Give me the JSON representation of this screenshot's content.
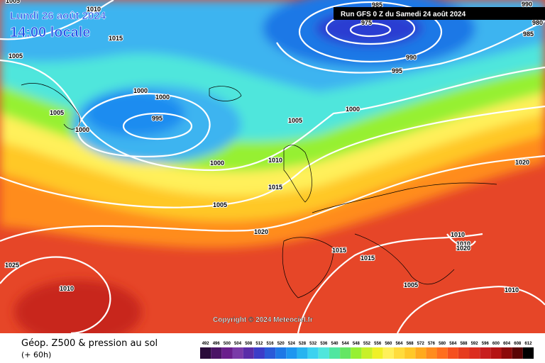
{
  "header": {
    "date": "Lundi 26 août 2024",
    "time": "14:00 locale",
    "run": "Run GFS 0 Z du Samedi 24 août 2024"
  },
  "copyright": "Copyright © 2024 Meteociel.fr",
  "footer": {
    "title": "Géop. Z500 & pression au sol",
    "lead": "(+ 60h)"
  },
  "isobars": [
    "1005",
    "1010",
    "1015",
    "1005",
    "1000",
    "1000",
    "1005",
    "1000",
    "995",
    "1000",
    "1005",
    "1000",
    "985",
    "975",
    "990",
    "995",
    "990",
    "980",
    "985",
    "1010",
    "1015",
    "1005",
    "1020",
    "1020",
    "1015",
    "1015",
    "1010",
    "1010",
    "1020",
    "1025",
    "1010",
    "1005",
    "1010"
  ],
  "legend": {
    "labels": [
      "492",
      "496",
      "500",
      "504",
      "508",
      "512",
      "516",
      "520",
      "524",
      "528",
      "532",
      "536",
      "540",
      "544",
      "548",
      "552",
      "556",
      "560",
      "564",
      "568",
      "572",
      "576",
      "580",
      "584",
      "588",
      "592",
      "596",
      "600",
      "604",
      "608",
      "612"
    ],
    "colors": [
      "#2a0b3a",
      "#4b1466",
      "#6a1e8c",
      "#7a3aa8",
      "#5a2ca8",
      "#3c3cc8",
      "#2a5ad8",
      "#1e78e6",
      "#1e96f0",
      "#28b4f0",
      "#3cd2f0",
      "#50e6dc",
      "#50e6a0",
      "#64e664",
      "#96f032",
      "#c8f028",
      "#f0f028",
      "#fff05a",
      "#ffdc3c",
      "#ffc828",
      "#ffaa1e",
      "#ff8c1e",
      "#ff6e1e",
      "#f5501e",
      "#e63c1e",
      "#dc2d1e",
      "#c81e1e",
      "#b41414",
      "#8c0a0a",
      "#5a0505",
      "#000000"
    ]
  }
}
